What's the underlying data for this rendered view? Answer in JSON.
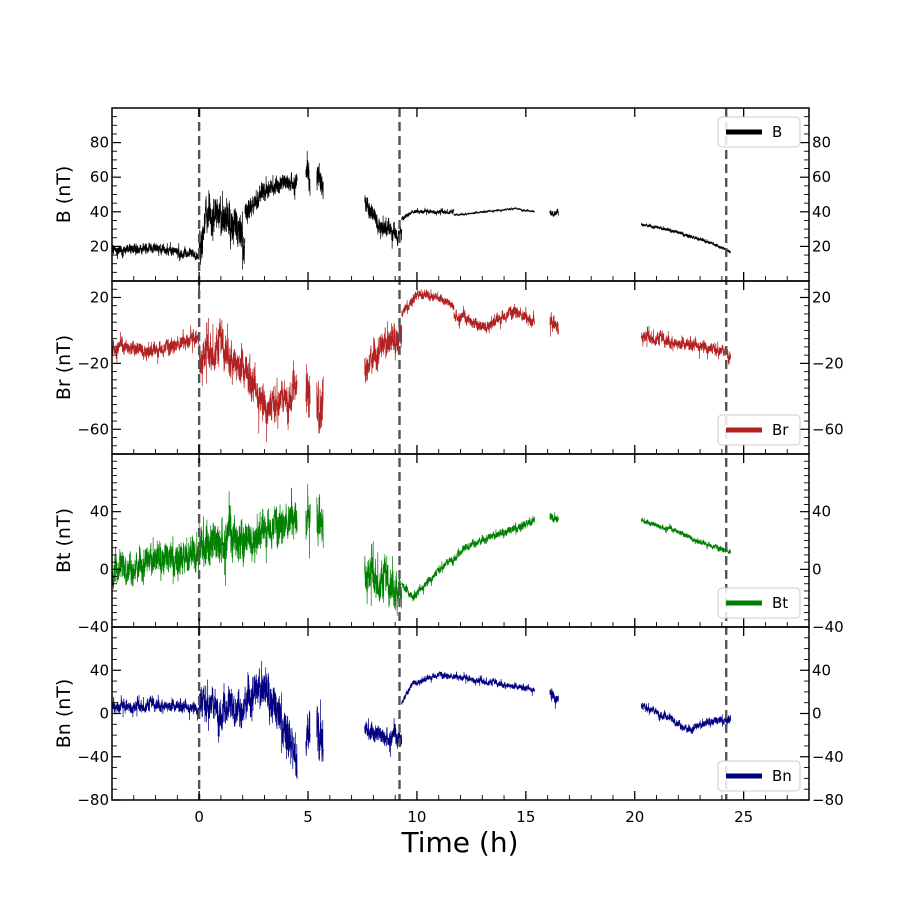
{
  "chart_data": {
    "type": "line",
    "xlabel": "Time (h)",
    "xlim": [
      -4,
      28
    ],
    "xticks": [
      0,
      5,
      10,
      15,
      20,
      25
    ],
    "xtick_labels": [
      "0",
      "5",
      "10",
      "15",
      "20",
      "25"
    ],
    "vlines": [
      0,
      9.2,
      24.2
    ],
    "panels": [
      {
        "name": "B",
        "ylabel": "B (nT)",
        "ylim": [
          0,
          100
        ],
        "yticks": [
          20,
          40,
          60,
          80
        ],
        "ytick_labels": [
          "20",
          "40",
          "60",
          "80"
        ],
        "legend": "B",
        "legend_loc": "top-right",
        "color": "#000000",
        "segments": [
          {
            "t0": -4,
            "t1": 0,
            "base": [
              [
                -4,
                18
              ],
              [
                -3,
                18
              ],
              [
                -2,
                19
              ],
              [
                -1,
                17
              ],
              [
                0,
                15
              ]
            ],
            "noise": 3
          },
          {
            "t0": 0,
            "t1": 2.1,
            "base": [
              [
                0,
                18
              ],
              [
                0.3,
                40
              ],
              [
                1,
                35
              ],
              [
                1.7,
                30
              ],
              [
                2.1,
                22
              ]
            ],
            "noise": 12
          },
          {
            "t0": 2.1,
            "t1": 4.5,
            "base": [
              [
                2.1,
                40
              ],
              [
                2.5,
                44
              ],
              [
                3,
                52
              ],
              [
                3.5,
                55
              ],
              [
                4,
                58
              ],
              [
                4.5,
                58
              ]
            ],
            "noise": 6
          },
          {
            "t0": 4.9,
            "t1": 5.1,
            "base": [
              [
                4.9,
                60
              ],
              [
                5.1,
                55
              ]
            ],
            "noise": 9
          },
          {
            "t0": 5.4,
            "t1": 5.7,
            "base": [
              [
                5.4,
                60
              ],
              [
                5.7,
                55
              ]
            ],
            "noise": 10
          },
          {
            "t0": 7.6,
            "t1": 9.3,
            "base": [
              [
                7.6,
                45
              ],
              [
                8.3,
                33
              ],
              [
                9.0,
                28
              ],
              [
                9.3,
                25
              ]
            ],
            "noise": 6
          },
          {
            "t0": 9.3,
            "t1": 11.7,
            "base": [
              [
                9.3,
                36
              ],
              [
                9.8,
                40
              ],
              [
                11.7,
                40
              ]
            ],
            "noise": 1.2
          },
          {
            "t0": 11.7,
            "t1": 15.4,
            "base": [
              [
                11.7,
                38
              ],
              [
                14.5,
                42
              ],
              [
                15.4,
                40
              ]
            ],
            "noise": 0.6
          },
          {
            "t0": 16.1,
            "t1": 16.5,
            "base": [
              [
                16.1,
                39
              ],
              [
                16.5,
                40
              ]
            ],
            "noise": 2
          },
          {
            "t0": 20.3,
            "t1": 24.4,
            "base": [
              [
                20.3,
                33
              ],
              [
                22,
                28
              ],
              [
                23.5,
                22
              ],
              [
                24.4,
                17
              ]
            ],
            "noise": 1
          }
        ]
      },
      {
        "name": "Br",
        "ylabel": "Br (nT)",
        "ylim": [
          -75,
          30
        ],
        "yticks": [
          -60,
          -20,
          20
        ],
        "ytick_labels": [
          "−60",
          "−20",
          "20"
        ],
        "legend": "Br",
        "legend_loc": "bottom-right",
        "color": "#b22222",
        "segments": [
          {
            "t0": -4,
            "t1": 0,
            "base": [
              [
                -4,
                -10
              ],
              [
                -2,
                -12
              ],
              [
                0,
                -5
              ]
            ],
            "noise": 5
          },
          {
            "t0": 0,
            "t1": 2.1,
            "base": [
              [
                0,
                -15
              ],
              [
                1,
                -10
              ],
              [
                2.1,
                -25
              ]
            ],
            "noise": 12
          },
          {
            "t0": 2.1,
            "t1": 4.5,
            "base": [
              [
                2.1,
                -25
              ],
              [
                3,
                -45
              ],
              [
                4,
                -40
              ],
              [
                4.5,
                -30
              ]
            ],
            "noise": 12
          },
          {
            "t0": 4.9,
            "t1": 5.1,
            "base": [
              [
                4.9,
                -40
              ],
              [
                5.1,
                -45
              ]
            ],
            "noise": 18
          },
          {
            "t0": 5.4,
            "t1": 5.7,
            "base": [
              [
                5.4,
                -40
              ],
              [
                5.7,
                -45
              ]
            ],
            "noise": 20
          },
          {
            "t0": 7.6,
            "t1": 9.3,
            "base": [
              [
                7.6,
                -20
              ],
              [
                8.5,
                -10
              ],
              [
                9.3,
                -5
              ]
            ],
            "noise": 10
          },
          {
            "t0": 9.3,
            "t1": 11.7,
            "base": [
              [
                9.3,
                10
              ],
              [
                10,
                22
              ],
              [
                11,
                20
              ],
              [
                11.7,
                15
              ]
            ],
            "noise": 3
          },
          {
            "t0": 11.7,
            "t1": 15.4,
            "base": [
              [
                11.7,
                10
              ],
              [
                13,
                2
              ],
              [
                14.5,
                12
              ],
              [
                15.4,
                4
              ]
            ],
            "noise": 4
          },
          {
            "t0": 16.1,
            "t1": 16.5,
            "base": [
              [
                16.1,
                5
              ],
              [
                16.5,
                2
              ]
            ],
            "noise": 5
          },
          {
            "t0": 20.3,
            "t1": 24.4,
            "base": [
              [
                20.3,
                -3
              ],
              [
                22,
                -8
              ],
              [
                23.5,
                -10
              ],
              [
                24.4,
                -14
              ]
            ],
            "noise": 4
          }
        ]
      },
      {
        "name": "Bt",
        "ylabel": "Bt (nT)",
        "ylim": [
          -40,
          80
        ],
        "yticks": [
          -40,
          0,
          40
        ],
        "ytick_labels": [
          "−40",
          "0",
          "40"
        ],
        "legend": "Bt",
        "legend_loc": "bottom-right",
        "color": "#008000",
        "segments": [
          {
            "t0": -4,
            "t1": 0,
            "base": [
              [
                -4,
                0
              ],
              [
                -2,
                5
              ],
              [
                0,
                10
              ]
            ],
            "noise": 12
          },
          {
            "t0": 0,
            "t1": 2.1,
            "base": [
              [
                0,
                15
              ],
              [
                1,
                22
              ],
              [
                2.1,
                18
              ]
            ],
            "noise": 18
          },
          {
            "t0": 2.1,
            "t1": 4.5,
            "base": [
              [
                2.1,
                20
              ],
              [
                3,
                28
              ],
              [
                4,
                32
              ],
              [
                4.5,
                35
              ]
            ],
            "noise": 14
          },
          {
            "t0": 4.9,
            "t1": 5.1,
            "base": [
              [
                4.9,
                32
              ],
              [
                5.1,
                30
              ]
            ],
            "noise": 15
          },
          {
            "t0": 5.4,
            "t1": 5.7,
            "base": [
              [
                5.4,
                35
              ],
              [
                5.7,
                30
              ]
            ],
            "noise": 18
          },
          {
            "t0": 7.6,
            "t1": 9.3,
            "base": [
              [
                7.6,
                0
              ],
              [
                8.5,
                -10
              ],
              [
                9.3,
                -15
              ]
            ],
            "noise": 14
          },
          {
            "t0": 9.3,
            "t1": 15.4,
            "base": [
              [
                9.3,
                -10
              ],
              [
                9.8,
                -20
              ],
              [
                11,
                0
              ],
              [
                12.5,
                18
              ],
              [
                14,
                25
              ],
              [
                15.4,
                34
              ]
            ],
            "noise": 3
          },
          {
            "t0": 16.1,
            "t1": 16.5,
            "base": [
              [
                16.1,
                36
              ],
              [
                16.5,
                35
              ]
            ],
            "noise": 3
          },
          {
            "t0": 20.3,
            "t1": 24.4,
            "base": [
              [
                20.3,
                34
              ],
              [
                22,
                26
              ],
              [
                23,
                19
              ],
              [
                24.4,
                12
              ]
            ],
            "noise": 2
          }
        ]
      },
      {
        "name": "Bn",
        "ylabel": "Bn (nT)",
        "ylim": [
          -80,
          80
        ],
        "yticks": [
          -80,
          -40,
          0,
          40
        ],
        "ytick_labels": [
          "−80",
          "−40",
          "0",
          "40"
        ],
        "legend": "Bn",
        "legend_loc": "bottom-right",
        "color": "#000080",
        "segments": [
          {
            "t0": -4,
            "t1": 0,
            "base": [
              [
                -4,
                5
              ],
              [
                -2,
                8
              ],
              [
                0,
                5
              ]
            ],
            "noise": 6
          },
          {
            "t0": 0,
            "t1": 2.1,
            "base": [
              [
                0,
                15
              ],
              [
                1,
                5
              ],
              [
                2.1,
                8
              ]
            ],
            "noise": 18
          },
          {
            "t0": 2.1,
            "t1": 4.5,
            "base": [
              [
                2.1,
                15
              ],
              [
                3,
                20
              ],
              [
                4,
                -15
              ],
              [
                4.5,
                -45
              ]
            ],
            "noise": 20
          },
          {
            "t0": 4.9,
            "t1": 5.1,
            "base": [
              [
                4.9,
                -25
              ],
              [
                5.1,
                -20
              ]
            ],
            "noise": 20
          },
          {
            "t0": 5.4,
            "t1": 5.7,
            "base": [
              [
                5.4,
                -15
              ],
              [
                5.7,
                -25
              ]
            ],
            "noise": 25
          },
          {
            "t0": 7.6,
            "t1": 9.3,
            "base": [
              [
                7.6,
                -15
              ],
              [
                8.5,
                -20
              ],
              [
                9.3,
                -25
              ]
            ],
            "noise": 10
          },
          {
            "t0": 9.3,
            "t1": 15.4,
            "base": [
              [
                9.3,
                10
              ],
              [
                9.8,
                28
              ],
              [
                11,
                36
              ],
              [
                13,
                30
              ],
              [
                15.4,
                22
              ]
            ],
            "noise": 3
          },
          {
            "t0": 16.1,
            "t1": 16.5,
            "base": [
              [
                16.1,
                18
              ],
              [
                16.5,
                15
              ]
            ],
            "noise": 6
          },
          {
            "t0": 20.3,
            "t1": 24.4,
            "base": [
              [
                20.3,
                8
              ],
              [
                21.5,
                -3
              ],
              [
                22.5,
                -15
              ],
              [
                23.5,
                -8
              ],
              [
                24.4,
                -5
              ]
            ],
            "noise": 4
          }
        ]
      }
    ]
  }
}
